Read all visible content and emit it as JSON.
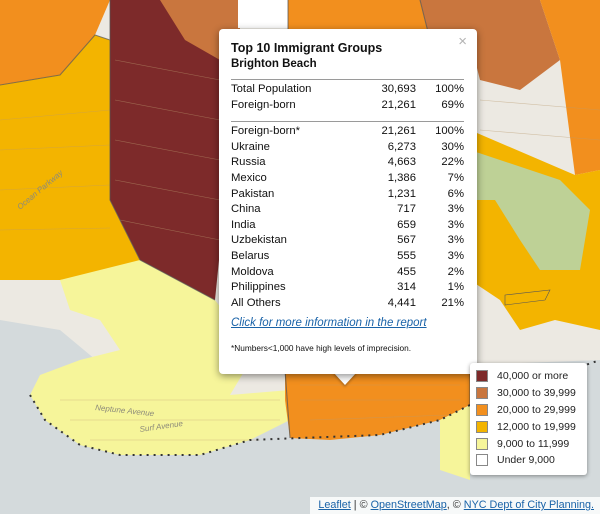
{
  "popup": {
    "title": "Top 10 Immigrant Groups",
    "subtitle": "Brighton Beach",
    "close_glyph": "×",
    "summary": [
      {
        "label": "Total Population",
        "value": "30,693",
        "pct": "100%"
      },
      {
        "label": "Foreign-born",
        "value": "21,261",
        "pct": "69%"
      }
    ],
    "groups": [
      {
        "label": "Foreign-born*",
        "value": "21,261",
        "pct": "100%"
      },
      {
        "label": "Ukraine",
        "value": "6,273",
        "pct": "30%"
      },
      {
        "label": "Russia",
        "value": "4,663",
        "pct": "22%"
      },
      {
        "label": "Mexico",
        "value": "1,386",
        "pct": "7%"
      },
      {
        "label": "Pakistan",
        "value": "1,231",
        "pct": "6%"
      },
      {
        "label": "China",
        "value": "717",
        "pct": "3%"
      },
      {
        "label": "India",
        "value": "659",
        "pct": "3%"
      },
      {
        "label": "Uzbekistan",
        "value": "567",
        "pct": "3%"
      },
      {
        "label": "Belarus",
        "value": "555",
        "pct": "3%"
      },
      {
        "label": "Moldova",
        "value": "455",
        "pct": "2%"
      },
      {
        "label": "Philippines",
        "value": "314",
        "pct": "1%"
      },
      {
        "label": "All Others",
        "value": "4,441",
        "pct": "21%"
      }
    ],
    "more_link": "Click for more information in the report",
    "note": "*Numbers<1,000 have high levels of imprecision."
  },
  "legend": [
    {
      "label": "40,000 or more",
      "color": "#7d2a2a"
    },
    {
      "label": "30,000 to 39,999",
      "color": "#c9763e"
    },
    {
      "label": "20,000 to 29,999",
      "color": "#f28f1e"
    },
    {
      "label": "12,000 to 19,999",
      "color": "#f3b400"
    },
    {
      "label": "9,000 to 11,999",
      "color": "#f6f59a"
    },
    {
      "label": "Under 9,000",
      "color": "#ffffff"
    }
  ],
  "attribution": {
    "leaflet": "Leaflet",
    "sep1": " | © ",
    "osm": "OpenStreetMap",
    "sep2": ", © ",
    "nyc": "NYC Dept of City Planning."
  },
  "map_labels": {
    "street_a": "Neptune Avenue",
    "street_b": "Surf Avenue",
    "street_c": "Ocean Parkway"
  }
}
